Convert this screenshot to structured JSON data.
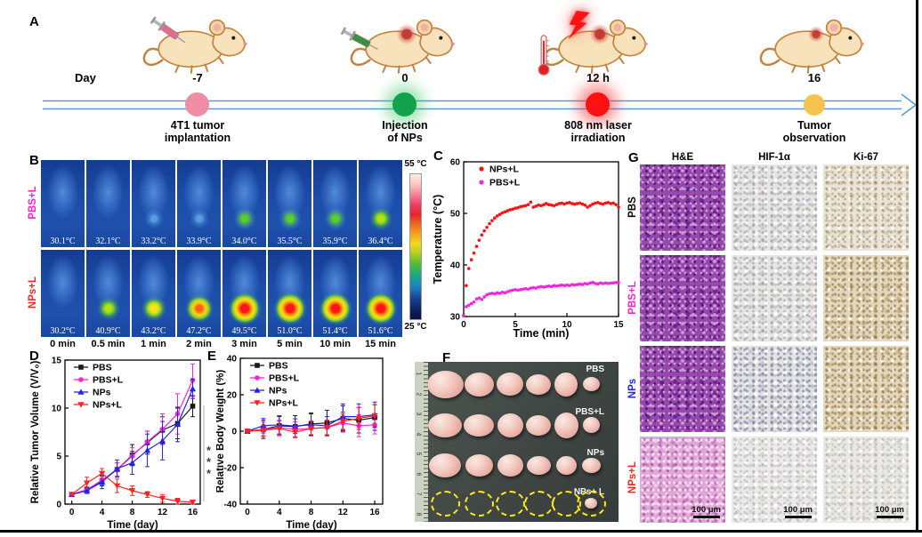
{
  "panels": {
    "A": "A",
    "B": "B",
    "C": "C",
    "D": "D",
    "E": "E",
    "F": "F",
    "G": "G"
  },
  "timeline": {
    "day_prefix": "Day",
    "events": [
      {
        "day": "-7",
        "caption_lines": [
          "4T1 tumor",
          "implantation"
        ],
        "dot_color": "#ef8da5",
        "icons": [
          "syringe-icon",
          "mouse-icon"
        ]
      },
      {
        "day": "0",
        "caption_lines": [
          "Injection",
          "of NPs"
        ],
        "dot_color": "#12a24b",
        "icons": [
          "syringe-icon",
          "mouse-icon",
          "tumor-marker"
        ]
      },
      {
        "day": "12 h",
        "caption_lines": [
          "808 nm laser",
          "irradiation"
        ],
        "dot_color": "#fe1111",
        "icons": [
          "laser-bolt-icon",
          "thermometer-icon",
          "mouse-icon",
          "tumor-marker"
        ]
      },
      {
        "day": "16",
        "caption_lines": [
          "Tumor",
          "observation"
        ],
        "dot_color": "#f5c44e",
        "icons": [
          "mouse-icon",
          "tumor-marker"
        ]
      }
    ]
  },
  "thermal": {
    "row_labels": [
      {
        "text": "PBS+L",
        "color": "#ff22cc"
      },
      {
        "text": "NPs+L",
        "color": "#ff2222"
      }
    ],
    "rows": [
      {
        "temps": [
          "30.1°C",
          "32.1°C",
          "33.2°C",
          "33.9°C",
          "34.0°C",
          "35.5°C",
          "35.9°C",
          "36.4°C"
        ],
        "hotspots": [
          0,
          0,
          1,
          1,
          2,
          2,
          2,
          3
        ]
      },
      {
        "temps": [
          "30.2°C",
          "40.9°C",
          "43.2°C",
          "47.2°C",
          "49.5°C",
          "51.0°C",
          "51.4°C",
          "51.6°C"
        ],
        "hotspots": [
          0,
          3,
          4,
          5,
          6,
          6,
          6,
          6
        ]
      }
    ],
    "time_labels": [
      "0 min",
      "0.5 min",
      "1 min",
      "2 min",
      "3 min",
      "5 min",
      "10 min",
      "15 min"
    ],
    "colorbar": {
      "top": "55 °C",
      "bottom": "25 °C"
    }
  },
  "chart_data": [
    {
      "id": "panelC",
      "type": "scatter",
      "xlabel": "Time (min)",
      "ylabel": "Temperature (°C)",
      "xlim": [
        0,
        15
      ],
      "ylim": [
        30,
        60
      ],
      "xticks": [
        0,
        5,
        10,
        15
      ],
      "yticks": [
        30,
        40,
        50,
        60
      ],
      "legend_position": "top-left",
      "series": [
        {
          "name": "NPs+L",
          "color": "#ff1111",
          "marker": "dot",
          "t_start": 0,
          "t_step": 0.25,
          "values": [
            30.2,
            36.0,
            39.3,
            41.0,
            42.3,
            43.6,
            44.8,
            45.8,
            46.6,
            47.3,
            48.0,
            48.6,
            49.1,
            49.5,
            49.8,
            50.1,
            50.3,
            50.5,
            50.7,
            50.8,
            51.0,
            51.1,
            51.3,
            51.4,
            51.5,
            51.7,
            52.2,
            51.2,
            51.4,
            51.6,
            51.5,
            51.7,
            51.9,
            51.7,
            51.6,
            51.5,
            51.7,
            51.9,
            52.0,
            51.8,
            52.0,
            52.1,
            51.9,
            51.8,
            51.9,
            52.0,
            51.8,
            51.6,
            51.2,
            51.5,
            51.8,
            52.0,
            52.1,
            51.9,
            51.8,
            52.0,
            52.1,
            51.9,
            52.0,
            51.7,
            51.2
          ]
        },
        {
          "name": "PBS+L",
          "color": "#ff22dd",
          "marker": "dot",
          "t_start": 0,
          "t_step": 0.25,
          "values": [
            30.1,
            31.9,
            32.2,
            32.5,
            32.8,
            33.4,
            33.6,
            33.3,
            33.8,
            34.2,
            34.4,
            34.5,
            34.4,
            34.6,
            34.5,
            34.7,
            34.6,
            34.8,
            35.0,
            35.1,
            35.2,
            35.1,
            35.2,
            35.3,
            35.4,
            35.3,
            35.5,
            35.6,
            35.5,
            35.7,
            35.8,
            35.7,
            35.8,
            35.9,
            35.8,
            36.0,
            35.9,
            36.0,
            36.1,
            36.0,
            36.1,
            36.0,
            36.2,
            36.1,
            36.2,
            36.3,
            36.2,
            36.4,
            36.3,
            36.5,
            36.6,
            36.4,
            36.3,
            36.5,
            36.4,
            36.5,
            36.4,
            36.5,
            36.5,
            36.6,
            36.6
          ]
        }
      ]
    },
    {
      "id": "panelD",
      "type": "line",
      "xlabel": "Time (day)",
      "ylabel": "Relative Tumor Volume (V/V₀)",
      "x": [
        0,
        2,
        4,
        6,
        8,
        10,
        12,
        14,
        16
      ],
      "xlim": [
        -0.9,
        17
      ],
      "ylim": [
        0,
        15
      ],
      "xticks": [
        0,
        4,
        8,
        12,
        16
      ],
      "yticks": [
        0,
        5,
        10,
        15
      ],
      "significance": "***",
      "series": [
        {
          "name": "PBS",
          "color": "#1a1a1a",
          "marker": "square",
          "values": [
            1.0,
            1.5,
            2.4,
            3.6,
            5.1,
            6.4,
            7.7,
            8.4,
            10.2
          ],
          "errors": [
            0.1,
            0.3,
            0.5,
            0.7,
            1.1,
            1.2,
            1.4,
            1.6,
            1.1
          ]
        },
        {
          "name": "PBS+L",
          "color": "#ff22dd",
          "marker": "circle",
          "values": [
            1.0,
            1.5,
            2.5,
            3.6,
            5.0,
            6.5,
            7.8,
            9.4,
            12.9
          ],
          "errors": [
            0.1,
            0.3,
            0.5,
            0.7,
            0.9,
            1.1,
            1.6,
            2.1,
            1.7
          ]
        },
        {
          "name": "NPs",
          "color": "#2222ee",
          "marker": "triangle-up",
          "values": [
            1.0,
            1.4,
            2.3,
            3.7,
            4.3,
            5.6,
            6.6,
            8.3,
            12.0
          ],
          "errors": [
            0.1,
            0.3,
            0.7,
            0.9,
            1.2,
            1.7,
            2.0,
            1.8,
            1.0
          ]
        },
        {
          "name": "NPs+L",
          "color": "#ff2222",
          "marker": "triangle-down",
          "values": [
            1.0,
            2.2,
            3.2,
            1.9,
            1.4,
            1.0,
            0.6,
            0.3,
            0.2
          ],
          "errors": [
            0.1,
            0.6,
            0.5,
            0.7,
            0.5,
            0.3,
            0.4,
            0.3,
            0.2
          ]
        }
      ]
    },
    {
      "id": "panelE",
      "type": "line",
      "xlabel": "Time (day)",
      "ylabel": "Relative Body Weight (%)",
      "x": [
        0,
        2,
        4,
        6,
        8,
        10,
        12,
        14,
        16
      ],
      "xlim": [
        -0.9,
        17
      ],
      "ylim": [
        -40,
        40
      ],
      "xticks": [
        0,
        4,
        8,
        12,
        16
      ],
      "yticks": [
        -40,
        -20,
        0,
        20,
        40
      ],
      "series": [
        {
          "name": "PBS",
          "color": "#1a1a1a",
          "marker": "square",
          "values": [
            0,
            1,
            3,
            2.5,
            4,
            4.5,
            7,
            6,
            7.5
          ],
          "errors": [
            0.5,
            5,
            5,
            6,
            6,
            7,
            7,
            7,
            7
          ]
        },
        {
          "name": "PBS+L",
          "color": "#ff22dd",
          "marker": "circle",
          "values": [
            0,
            1,
            2,
            1,
            1.5,
            2,
            4.5,
            3,
            3.5
          ],
          "errors": [
            0.5,
            4,
            4,
            4,
            4,
            4,
            5,
            6,
            5
          ]
        },
        {
          "name": "NPs",
          "color": "#2222ee",
          "marker": "triangle-up",
          "values": [
            0,
            3,
            3.5,
            2.8,
            3.5,
            3,
            8,
            8,
            9
          ],
          "errors": [
            0.5,
            4,
            5,
            4,
            6,
            5,
            7,
            7,
            7
          ]
        },
        {
          "name": "NPs+L",
          "color": "#ff2222",
          "marker": "triangle-down",
          "values": [
            0,
            0.5,
            1.5,
            -0.5,
            1.5,
            2,
            5.5,
            7,
            8.5
          ],
          "errors": [
            0.5,
            3,
            4,
            3,
            4,
            4,
            5,
            6,
            6
          ]
        }
      ]
    }
  ],
  "photo": {
    "ruler_numbers": [
      "1",
      "2",
      "3",
      "4",
      "5",
      "6",
      "7",
      "8"
    ],
    "rows": [
      {
        "label": "PBS",
        "tumors": [
          [
            41,
            31
          ],
          [
            33,
            27
          ],
          [
            30,
            26
          ],
          [
            28,
            23
          ],
          [
            26,
            27
          ],
          [
            19,
            16
          ]
        ]
      },
      {
        "label": "PBS+L",
        "tumors": [
          [
            38,
            27
          ],
          [
            34,
            25
          ],
          [
            29,
            27
          ],
          [
            28,
            23
          ],
          [
            27,
            29
          ],
          [
            19,
            18
          ]
        ]
      },
      {
        "label": "NPs",
        "tumors": [
          [
            36,
            27
          ],
          [
            31,
            25
          ],
          [
            29,
            25
          ],
          [
            27,
            21
          ],
          [
            23,
            21
          ],
          [
            21,
            17
          ]
        ]
      },
      {
        "label": "NPs+ L",
        "dashed_circles": true,
        "small_tumor_in_last": true
      }
    ]
  },
  "histology": {
    "headers": [
      "H&E",
      "HIF-1α",
      "Ki-67"
    ],
    "row_labels": [
      {
        "text": "PBS",
        "color": "#000000"
      },
      {
        "text": "PBS+L",
        "color": "#ff22cc"
      },
      {
        "text": "NPs",
        "color": "#2222ee"
      },
      {
        "text": "NPs+L",
        "color": "#ff2222"
      }
    ],
    "scale_bar": "100 μm"
  }
}
